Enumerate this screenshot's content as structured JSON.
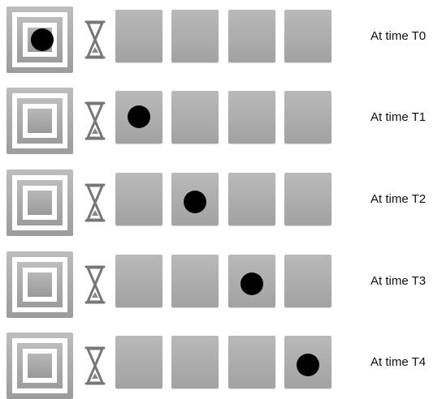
{
  "rows": [
    {
      "label": "At time T0",
      "dot_position": 0
    },
    {
      "label": "At time T1",
      "dot_position": 1
    },
    {
      "label": "At time T2",
      "dot_position": 2
    },
    {
      "label": "At time T3",
      "dot_position": 3
    },
    {
      "label": "At time T4",
      "dot_position": 4
    }
  ],
  "cells_per_row": 4,
  "colors": {
    "box": "#aaaaaa",
    "dot": "#000000",
    "background": "#ffffff"
  },
  "icons": {
    "source": "concentric-square-icon",
    "timer": "hourglass-icon"
  }
}
